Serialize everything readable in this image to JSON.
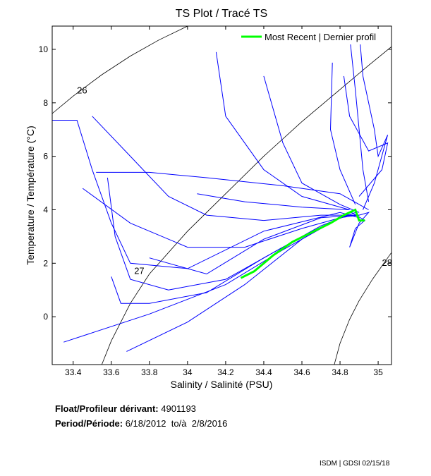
{
  "chart_data": {
    "type": "line",
    "title": "TS Plot / Tracé TS",
    "xlabel": "Salinity / Salinité (PSU)",
    "ylabel": "Temperature / Température (°C)",
    "xlim": [
      33.29,
      35.07
    ],
    "ylim": [
      -1.79,
      10.87
    ],
    "xticks": [
      33.4,
      33.6,
      33.8,
      34,
      34.2,
      34.4,
      34.6,
      34.8,
      35
    ],
    "xtick_labels": [
      "33.4",
      "33.6",
      "33.8",
      "34",
      "34.2",
      "34.4",
      "34.6",
      "34.8",
      "35"
    ],
    "yticks": [
      0,
      2,
      4,
      6,
      8,
      10
    ],
    "ytick_labels": [
      "0",
      "2",
      "4",
      "6",
      "8",
      "10"
    ],
    "grid": false,
    "legend": {
      "placement": "top-right",
      "entries": [
        {
          "label": "Most Recent | Dernier profil",
          "color": "#00ff00"
        }
      ]
    },
    "density_contours": [
      {
        "label": "26",
        "label_at": [
          33.42,
          8.35
        ],
        "points": [
          [
            33.29,
            7.6
          ],
          [
            33.4,
            8.25
          ],
          [
            33.55,
            9.05
          ],
          [
            33.7,
            9.75
          ],
          [
            33.85,
            10.35
          ],
          [
            34.0,
            10.87
          ]
        ]
      },
      {
        "label": "27",
        "label_at": [
          33.72,
          1.6
        ],
        "points": [
          [
            33.55,
            -1.79
          ],
          [
            33.6,
            -0.9
          ],
          [
            33.7,
            0.5
          ],
          [
            33.8,
            1.6
          ],
          [
            34.0,
            3.2
          ],
          [
            34.2,
            4.6
          ],
          [
            34.4,
            6.0
          ],
          [
            34.6,
            7.3
          ],
          [
            34.8,
            8.5
          ],
          [
            34.95,
            9.4
          ],
          [
            35.07,
            10.1
          ]
        ]
      },
      {
        "label": "28",
        "label_at": [
          35.02,
          1.9
        ],
        "points": [
          [
            34.77,
            -1.79
          ],
          [
            34.8,
            -1.0
          ],
          [
            34.85,
            -0.1
          ],
          [
            34.9,
            0.6
          ],
          [
            34.97,
            1.4
          ],
          [
            35.07,
            2.4
          ]
        ]
      }
    ],
    "series": [
      {
        "name": "profiles",
        "color": "#0000ff",
        "lines": [
          [
            [
              33.29,
              7.35
            ],
            [
              33.42,
              7.35
            ],
            [
              33.5,
              5.5
            ],
            [
              33.6,
              3.5
            ],
            [
              33.7,
              2.0
            ],
            [
              34.0,
              1.8
            ],
            [
              34.4,
              3.2
            ],
            [
              34.8,
              3.9
            ],
            [
              34.9,
              3.7
            ]
          ],
          [
            [
              33.5,
              7.5
            ],
            [
              33.7,
              6.0
            ],
            [
              33.9,
              4.5
            ],
            [
              34.1,
              3.8
            ],
            [
              34.4,
              3.6
            ],
            [
              34.7,
              3.8
            ],
            [
              34.9,
              3.8
            ]
          ],
          [
            [
              33.52,
              5.4
            ],
            [
              33.8,
              5.4
            ],
            [
              34.1,
              5.2
            ],
            [
              34.5,
              4.9
            ],
            [
              34.8,
              4.6
            ],
            [
              34.95,
              4.0
            ]
          ],
          [
            [
              33.58,
              5.2
            ],
            [
              33.62,
              3.0
            ],
            [
              33.7,
              1.4
            ],
            [
              33.9,
              1.0
            ],
            [
              34.2,
              1.4
            ],
            [
              34.5,
              2.6
            ],
            [
              34.8,
              3.7
            ],
            [
              34.9,
              3.8
            ]
          ],
          [
            [
              33.35,
              -0.95
            ],
            [
              33.8,
              0.1
            ],
            [
              34.2,
              1.2
            ],
            [
              34.5,
              2.5
            ],
            [
              34.8,
              3.7
            ]
          ],
          [
            [
              33.68,
              -1.3
            ],
            [
              34.0,
              -0.2
            ],
            [
              34.3,
              1.2
            ],
            [
              34.6,
              2.9
            ],
            [
              34.85,
              3.9
            ]
          ],
          [
            [
              33.6,
              1.5
            ],
            [
              33.65,
              0.5
            ],
            [
              33.8,
              0.5
            ],
            [
              34.1,
              0.9
            ],
            [
              34.4,
              2.2
            ],
            [
              34.7,
              3.4
            ],
            [
              34.88,
              3.9
            ]
          ],
          [
            [
              34.15,
              9.9
            ],
            [
              34.2,
              7.5
            ],
            [
              34.4,
              5.5
            ],
            [
              34.6,
              4.5
            ],
            [
              34.85,
              4.0
            ]
          ],
          [
            [
              34.4,
              9.0
            ],
            [
              34.5,
              6.5
            ],
            [
              34.6,
              5.0
            ],
            [
              34.8,
              4.2
            ],
            [
              34.9,
              3.9
            ]
          ],
          [
            [
              34.76,
              9.5
            ],
            [
              34.75,
              7.0
            ],
            [
              34.8,
              5.5
            ],
            [
              34.88,
              4.2
            ]
          ],
          [
            [
              34.85,
              10.5
            ],
            [
              34.88,
              8.5
            ],
            [
              34.9,
              7.0
            ],
            [
              34.92,
              5.5
            ],
            [
              34.95,
              4.3
            ]
          ],
          [
            [
              34.9,
              10.7
            ],
            [
              34.92,
              9.0
            ],
            [
              34.98,
              7.0
            ],
            [
              35.0,
              6.0
            ],
            [
              35.05,
              6.8
            ],
            [
              34.98,
              5.0
            ],
            [
              34.92,
              4.0
            ]
          ],
          [
            [
              34.82,
              9.0
            ],
            [
              34.85,
              7.5
            ],
            [
              34.95,
              6.2
            ],
            [
              35.05,
              6.5
            ],
            [
              35.02,
              5.5
            ],
            [
              34.9,
              4.5
            ]
          ],
          [
            [
              33.8,
              2.2
            ],
            [
              34.1,
              1.6
            ],
            [
              34.4,
              2.9
            ],
            [
              34.7,
              3.7
            ],
            [
              34.88,
              3.8
            ]
          ],
          [
            [
              33.45,
              4.8
            ],
            [
              33.7,
              3.5
            ],
            [
              34.0,
              2.6
            ],
            [
              34.3,
              2.6
            ],
            [
              34.6,
              3.3
            ],
            [
              34.85,
              3.8
            ]
          ],
          [
            [
              34.05,
              4.6
            ],
            [
              34.3,
              4.3
            ],
            [
              34.6,
              4.1
            ],
            [
              34.85,
              4.0
            ]
          ],
          [
            [
              34.86,
              3.9
            ],
            [
              34.93,
              3.6
            ],
            [
              34.88,
              3.3
            ],
            [
              34.85,
              2.6
            ],
            [
              34.9,
              3.5
            ],
            [
              34.95,
              3.9
            ],
            [
              34.9,
              3.8
            ]
          ]
        ]
      },
      {
        "name": "Most Recent | Dernier profil",
        "color": "#00ff00",
        "lines": [
          [
            [
              34.28,
              1.45
            ],
            [
              34.35,
              1.7
            ],
            [
              34.45,
              2.3
            ],
            [
              34.55,
              2.8
            ],
            [
              34.65,
              3.15
            ],
            [
              34.75,
              3.5
            ],
            [
              34.82,
              3.8
            ],
            [
              34.88,
              4.0
            ],
            [
              34.9,
              3.6
            ],
            [
              34.93,
              3.6
            ]
          ]
        ]
      }
    ]
  },
  "info": {
    "float_label": "Float/Profileur dérivant:",
    "float_id": "4901193",
    "period_label": "Period/Période:",
    "period_start": "6/18/2012",
    "period_sep": "to/à",
    "period_end": "2/8/2016"
  },
  "credit": "ISDM | GDSI 02/15/18"
}
